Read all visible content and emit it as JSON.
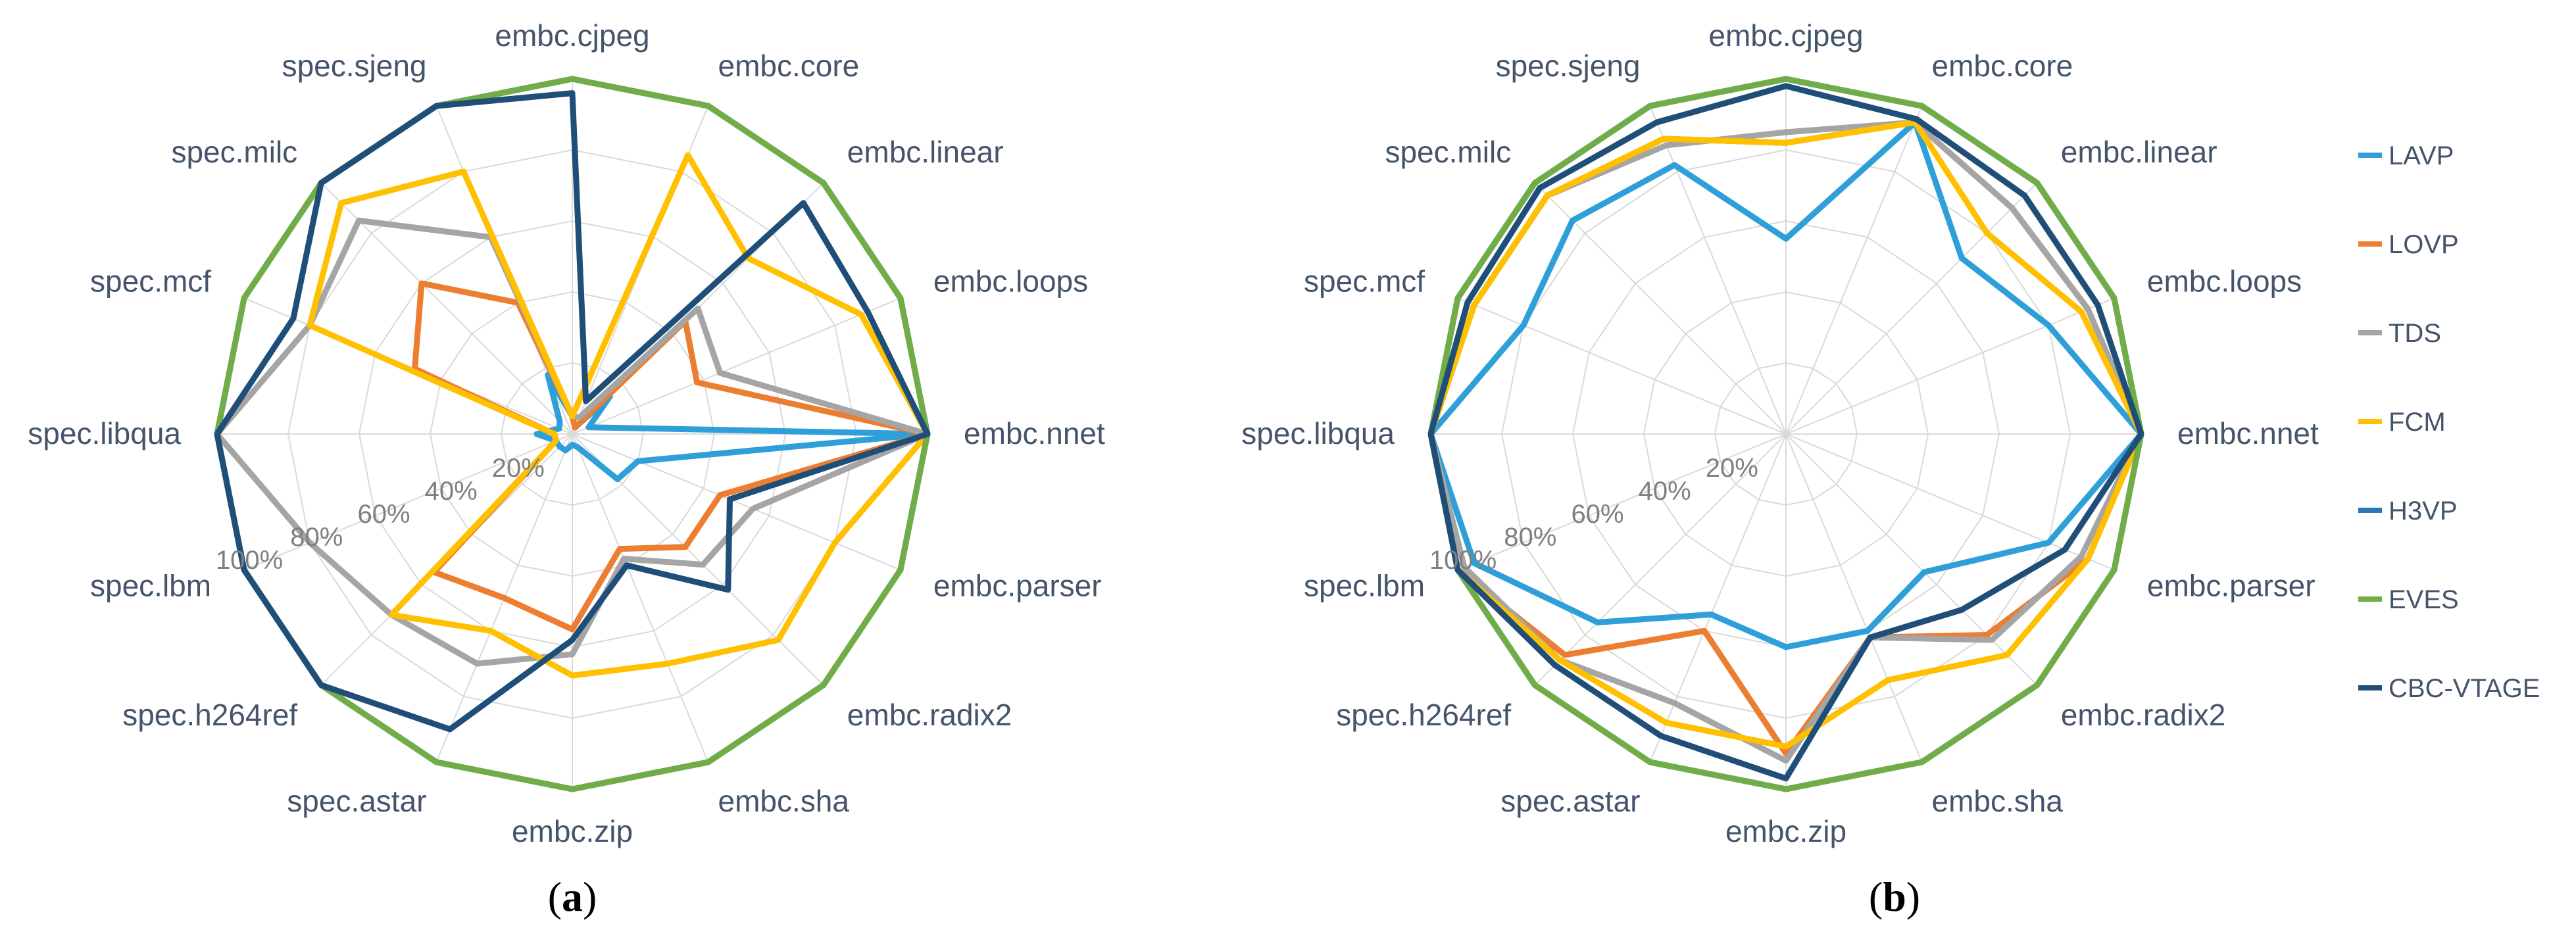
{
  "chart_data": [
    {
      "type": "radar",
      "caption_letter": "a",
      "categories": [
        "embc.cjpeg",
        "embc.core",
        "embc.linear",
        "embc.loops",
        "embc.nnet",
        "embc.parser",
        "embc.radix2",
        "embc.sha",
        "embc.zip",
        "spec.astar",
        "spec.h264ref",
        "spec.lbm",
        "spec.libqua",
        "spec.mcf",
        "spec.milc",
        "spec.sjeng"
      ],
      "rlim": [
        0,
        100
      ],
      "ticks": [
        "20%",
        "40%",
        "60%",
        "80%",
        "100%"
      ],
      "grid": true,
      "series": [
        {
          "name": "LAVP",
          "color": "#2E9FD8",
          "values": [
            5,
            2,
            15,
            5,
            100,
            20,
            18,
            4,
            3,
            5,
            5,
            5,
            10,
            4,
            5,
            18
          ]
        },
        {
          "name": "LOVP",
          "color": "#ED7D31",
          "values": [
            5,
            2,
            45,
            38,
            100,
            45,
            45,
            35,
            55,
            50,
            55,
            5,
            5,
            48,
            60,
            40
          ]
        },
        {
          "name": "TDS",
          "color": "#A5A5A5",
          "values": [
            5,
            5,
            50,
            45,
            100,
            55,
            52,
            38,
            62,
            70,
            72,
            80,
            100,
            80,
            85,
            60
          ]
        },
        {
          "name": "FCM",
          "color": "#FFC000",
          "values": [
            5,
            85,
            70,
            88,
            100,
            80,
            82,
            70,
            68,
            60,
            72,
            5,
            5,
            80,
            92,
            80
          ]
        },
        {
          "name": "H3VP",
          "color": "#2E75B6",
          "values": [
            100,
            100,
            100,
            100,
            100,
            100,
            100,
            100,
            100,
            100,
            100,
            100,
            100,
            100,
            100,
            100
          ]
        },
        {
          "name": "EVES",
          "color": "#70AD47",
          "values": [
            100,
            100,
            100,
            100,
            100,
            100,
            100,
            100,
            100,
            100,
            100,
            100,
            100,
            100,
            100,
            100
          ]
        },
        {
          "name": "CBC-VTAGE",
          "color": "#1F4E79",
          "values": [
            96,
            10,
            92,
            90,
            100,
            48,
            62,
            40,
            58,
            90,
            100,
            100,
            100,
            85,
            100,
            100
          ]
        }
      ]
    },
    {
      "type": "radar",
      "caption_letter": "b",
      "categories": [
        "embc.cjpeg",
        "embc.core",
        "embc.linear",
        "embc.loops",
        "embc.nnet",
        "embc.parser",
        "embc.radix2",
        "embc.sha",
        "embc.zip",
        "spec.astar",
        "spec.h264ref",
        "spec.lbm",
        "spec.libqua",
        "spec.mcf",
        "spec.milc",
        "spec.sjeng"
      ],
      "rlim": [
        0,
        100
      ],
      "ticks": [
        "20%",
        "40%",
        "60%",
        "80%",
        "100%"
      ],
      "grid": true,
      "series": [
        {
          "name": "LAVP",
          "color": "#2E9FD8",
          "values": [
            55,
            95,
            70,
            80,
            100,
            80,
            55,
            60,
            60,
            55,
            75,
            95,
            100,
            80,
            85,
            82
          ]
        },
        {
          "name": "LOVP",
          "color": "#ED7D31",
          "values": [
            82,
            95,
            90,
            92,
            100,
            92,
            80,
            62,
            90,
            60,
            88,
            100,
            100,
            95,
            95,
            90
          ]
        },
        {
          "name": "TDS",
          "color": "#A5A5A5",
          "values": [
            85,
            95,
            90,
            92,
            100,
            90,
            82,
            62,
            92,
            82,
            90,
            98,
            100,
            95,
            95,
            88
          ]
        },
        {
          "name": "FCM",
          "color": "#FFC000",
          "values": [
            82,
            95,
            80,
            90,
            100,
            92,
            88,
            75,
            88,
            88,
            90,
            100,
            100,
            95,
            95,
            90
          ]
        },
        {
          "name": "H3VP",
          "color": "#2E75B6",
          "values": [
            100,
            100,
            100,
            100,
            100,
            100,
            100,
            100,
            100,
            100,
            100,
            100,
            100,
            100,
            100,
            100
          ]
        },
        {
          "name": "EVES",
          "color": "#70AD47",
          "values": [
            100,
            100,
            100,
            100,
            100,
            100,
            100,
            100,
            100,
            100,
            100,
            100,
            100,
            100,
            100,
            100
          ]
        },
        {
          "name": "CBC-VTAGE",
          "color": "#1F4E79",
          "values": [
            98,
            96,
            95,
            95,
            100,
            85,
            70,
            62,
            97,
            92,
            92,
            100,
            100,
            97,
            98,
            95
          ]
        }
      ]
    }
  ],
  "legend": {
    "items": [
      "LAVP",
      "LOVP",
      "TDS",
      "FCM",
      "H3VP",
      "EVES",
      "CBC-VTAGE"
    ],
    "colors": [
      "#2E9FD8",
      "#ED7D31",
      "#A5A5A5",
      "#FFC000",
      "#2E75B6",
      "#70AD47",
      "#1F4E79"
    ]
  },
  "captions": [
    {
      "open": "(",
      "letter": "a",
      "close": ")"
    },
    {
      "open": "(",
      "letter": "b",
      "close": ")"
    }
  ]
}
